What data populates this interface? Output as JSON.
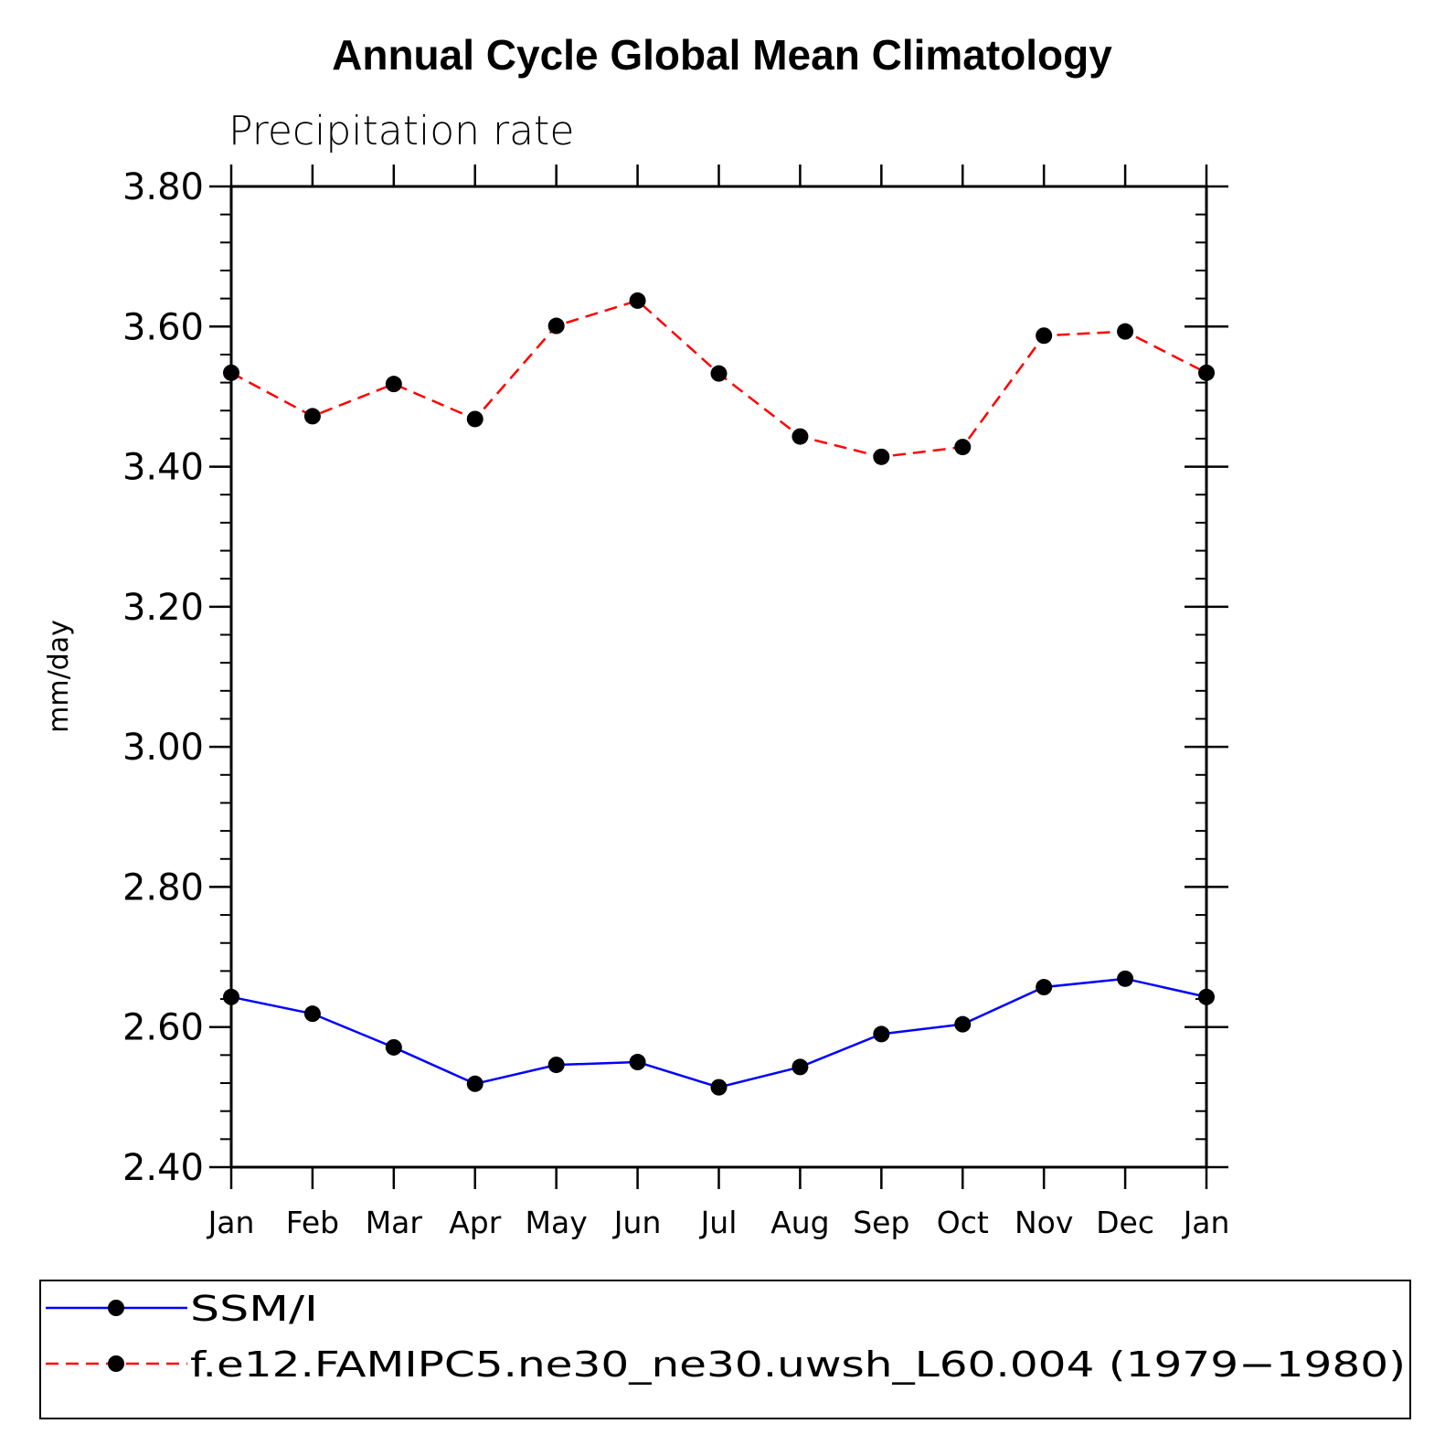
{
  "chart_data": {
    "type": "line",
    "title": "Annual Cycle Global Mean Climatology",
    "subtitle": "Precipitation rate",
    "xlabel": "",
    "ylabel": "mm/day",
    "ylim": [
      2.4,
      3.8
    ],
    "yticks": [
      "2.40",
      "2.60",
      "2.80",
      "3.00",
      "3.20",
      "3.40",
      "3.60",
      "3.80"
    ],
    "categories": [
      "Jan",
      "Feb",
      "Mar",
      "Apr",
      "May",
      "Jun",
      "Jul",
      "Aug",
      "Sep",
      "Oct",
      "Nov",
      "Dec",
      "Jan"
    ],
    "legend_placement": "bottom",
    "grid": false,
    "series": [
      {
        "name": "SSM/I",
        "color": "#0000ff",
        "dash": "solid",
        "values": [
          2.643,
          2.619,
          2.571,
          2.519,
          2.546,
          2.55,
          2.514,
          2.543,
          2.59,
          2.604,
          2.657,
          2.669,
          2.643
        ]
      },
      {
        "name": "f.e12.FAMIPC5.ne30_ne30.uwsh_L60.004 (1979−1980)",
        "color": "#ff0000",
        "dash": "dashed",
        "values": [
          3.534,
          3.472,
          3.518,
          3.468,
          3.601,
          3.637,
          3.533,
          3.443,
          3.414,
          3.428,
          3.587,
          3.593,
          3.534
        ]
      }
    ]
  }
}
